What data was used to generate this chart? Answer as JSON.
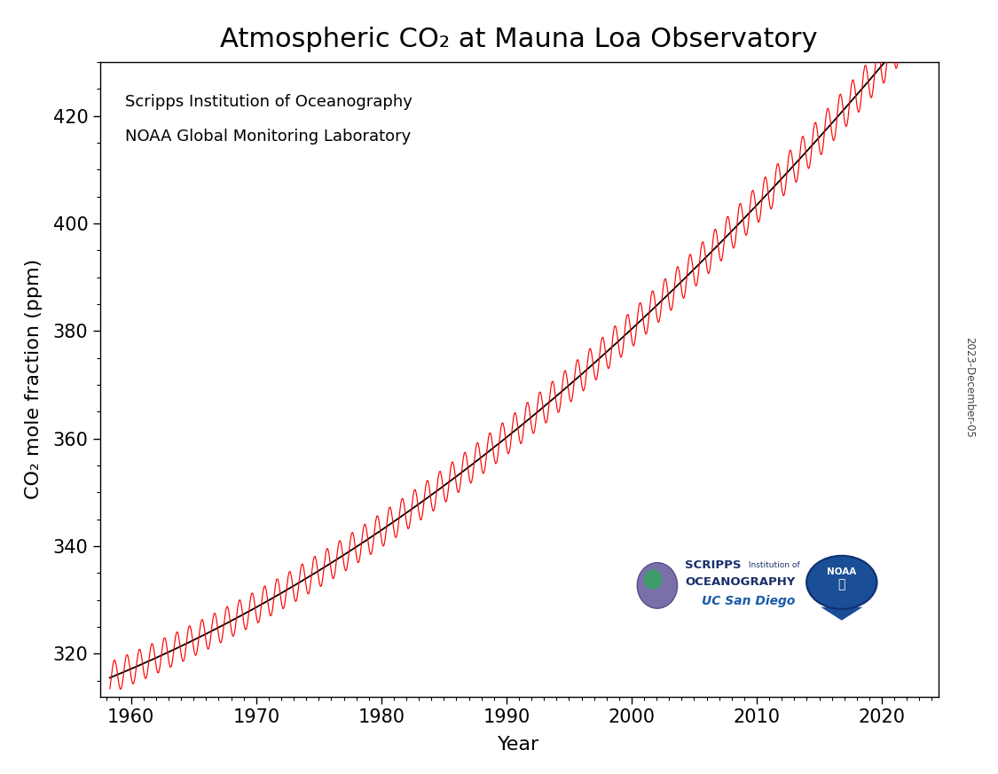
{
  "title": "Atmospheric CO₂ at Mauna Loa Observatory",
  "xlabel": "Year",
  "ylabel": "CO₂ mole fraction (ppm)",
  "year_start": 1958.3,
  "year_end": 2024.0,
  "red_color": "#FF0000",
  "black_color": "#000000",
  "background_color": "#FFFFFF",
  "annotation_line1": "Scripps Institution of Oceanography",
  "annotation_line2": "NOAA Global Monitoring Laboratory",
  "date_label": "2023-December-05",
  "xlim": [
    1957.5,
    2024.5
  ],
  "ylim": [
    312,
    430
  ],
  "yticks": [
    320,
    340,
    360,
    380,
    400,
    420
  ],
  "xticks": [
    1960,
    1970,
    1980,
    1990,
    2000,
    2010,
    2020
  ],
  "title_fontsize": 22,
  "label_fontsize": 16,
  "tick_fontsize": 15
}
